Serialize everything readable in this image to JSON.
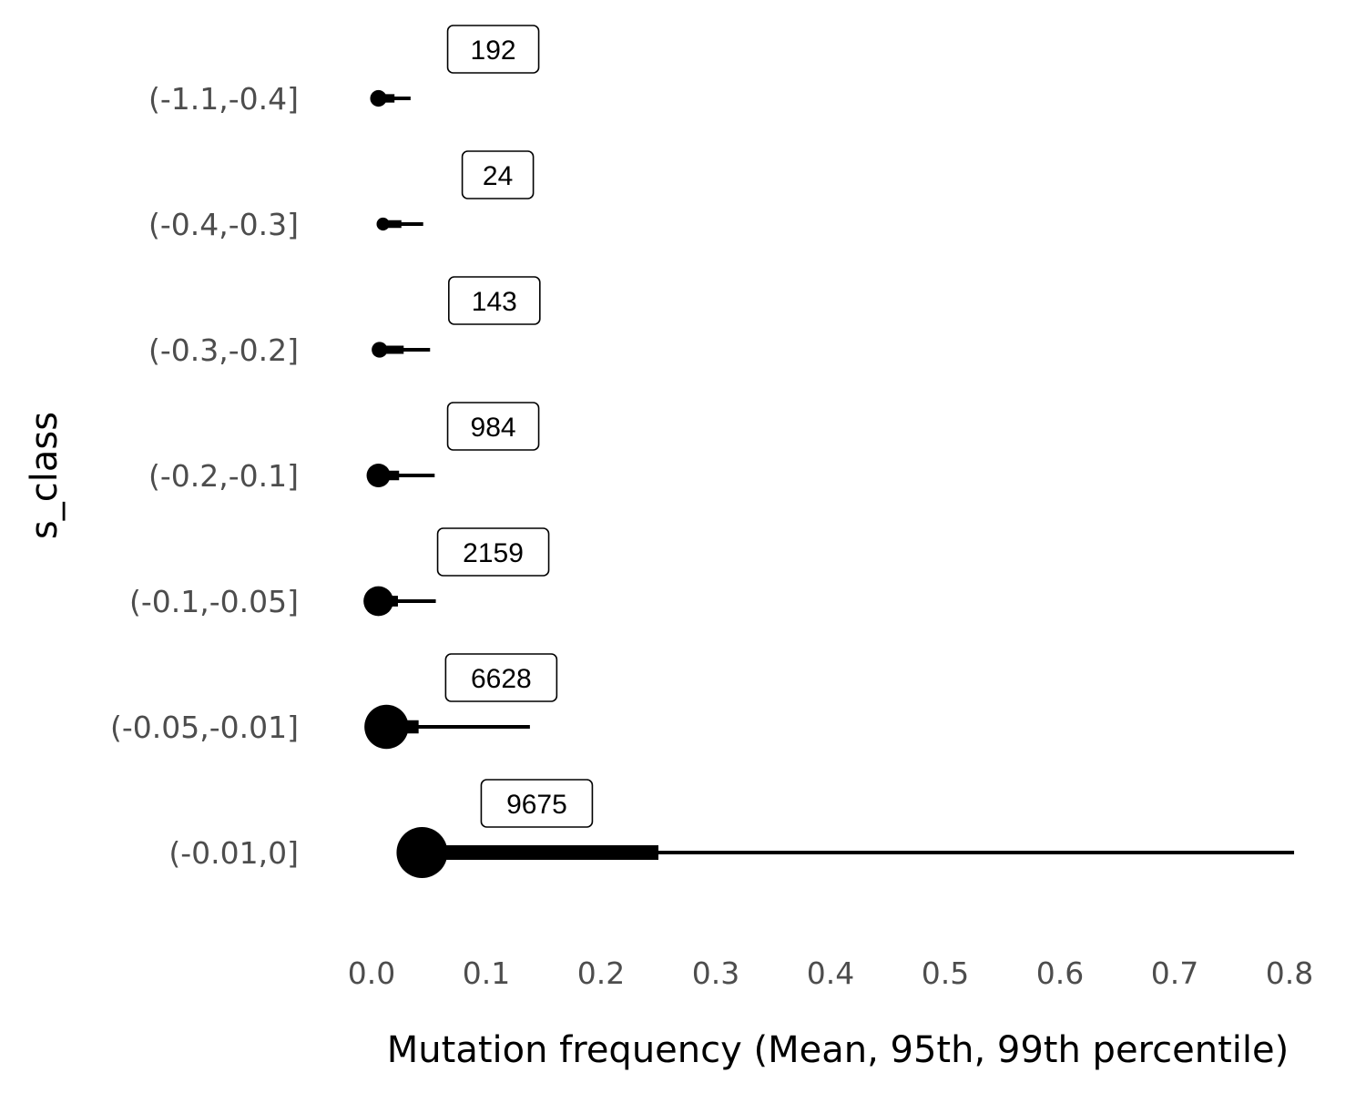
{
  "chart_data": {
    "type": "scatter",
    "subtype": "point-interval (mean with 95th and 99th percentile range)",
    "title": "",
    "xlabel": "Mutation frequency (Mean, 95th, 99th percentile)",
    "ylabel": "s_class",
    "xlim": [
      0.0,
      0.8
    ],
    "x_ticks": [
      "0.0",
      "0.1",
      "0.2",
      "0.3",
      "0.4",
      "0.5",
      "0.6",
      "0.7",
      "0.8"
    ],
    "grid": false,
    "legend": "none",
    "point_size_encodes": "count",
    "categories": [
      "(-1.1,-0.4]",
      "(-0.4,-0.3]",
      "(-0.3,-0.2]",
      "(-0.2,-0.1]",
      "(-0.1,-0.05]",
      "(-0.05,-0.01]",
      "(-0.01,0]"
    ],
    "series": [
      {
        "mean": [
          0.006,
          0.01,
          0.007,
          0.006,
          0.006,
          0.013,
          0.044
        ],
        "p95": [
          0.02,
          0.026,
          0.028,
          0.024,
          0.023,
          0.041,
          0.25
        ],
        "p99": [
          0.034,
          0.045,
          0.051,
          0.055,
          0.056,
          0.138,
          0.804
        ],
        "count": [
          192,
          24,
          143,
          984,
          2159,
          6628,
          9675
        ]
      }
    ],
    "count_labels": [
      "192",
      "24",
      "143",
      "984",
      "2159",
      "6628",
      "9675"
    ],
    "colors": {
      "marks": "#000000",
      "tick_text": "#4d4d4d",
      "title_text": "#000000"
    }
  }
}
